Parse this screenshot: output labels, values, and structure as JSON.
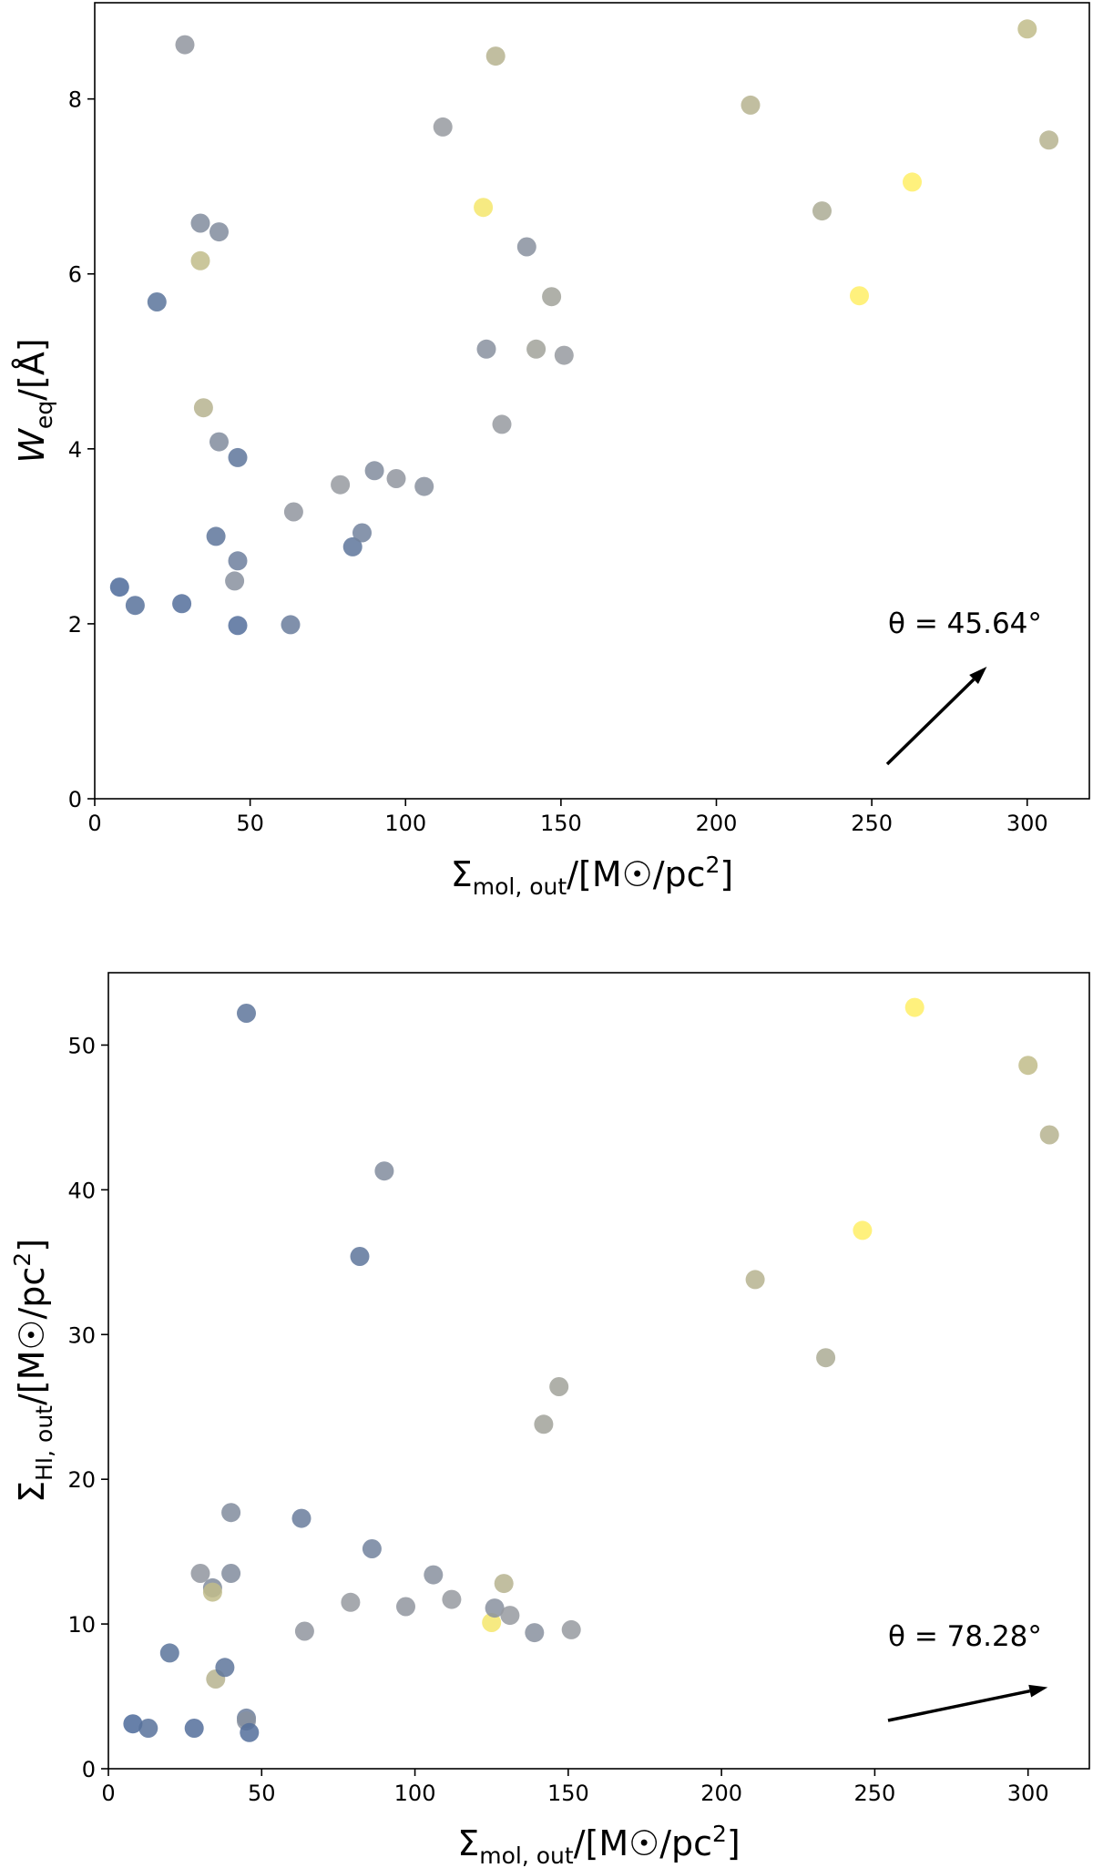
{
  "chart_data": [
    {
      "type": "scatter",
      "xlabel": {
        "main": "Σ",
        "sub": "mol, out",
        "post": "/[M",
        "sun": "☉",
        "unit": "/pc",
        "sup": "2",
        "close": "]"
      },
      "ylabel": {
        "main": "W",
        "sub": "eq",
        "post": "/[Å]"
      },
      "xlim": [
        0,
        320
      ],
      "ylim": [
        0,
        9.1
      ],
      "xticks": [
        0,
        50,
        100,
        150,
        200,
        250,
        300
      ],
      "yticks": [
        0,
        2,
        4,
        6,
        8
      ],
      "annotation": {
        "text": "θ = 45.64°",
        "angle_deg": 45.64
      },
      "colormap": [
        "#4c6a9a",
        "#979aa0",
        "#ffee66"
      ],
      "color_encoding": "marker colour indicates a third quantity (cividis-like colormap, no colorbar shown)",
      "points": [
        {
          "x": 8,
          "y": 2.42,
          "c": 0.0
        },
        {
          "x": 13,
          "y": 2.21,
          "c": 0.08
        },
        {
          "x": 28,
          "y": 2.23,
          "c": 0.05
        },
        {
          "x": 20,
          "y": 5.68,
          "c": 0.1
        },
        {
          "x": 29,
          "y": 8.62,
          "c": 0.45
        },
        {
          "x": 34,
          "y": 6.58,
          "c": 0.35
        },
        {
          "x": 34,
          "y": 6.15,
          "c": 0.7
        },
        {
          "x": 40,
          "y": 6.48,
          "c": 0.35
        },
        {
          "x": 35,
          "y": 4.47,
          "c": 0.65
        },
        {
          "x": 40,
          "y": 4.08,
          "c": 0.35
        },
        {
          "x": 39,
          "y": 3.0,
          "c": 0.12
        },
        {
          "x": 46,
          "y": 3.9,
          "c": 0.12
        },
        {
          "x": 46,
          "y": 2.72,
          "c": 0.22
        },
        {
          "x": 45,
          "y": 2.49,
          "c": 0.4
        },
        {
          "x": 46,
          "y": 1.98,
          "c": 0.05
        },
        {
          "x": 63,
          "y": 1.99,
          "c": 0.2
        },
        {
          "x": 64,
          "y": 3.28,
          "c": 0.45
        },
        {
          "x": 79,
          "y": 3.59,
          "c": 0.5
        },
        {
          "x": 83,
          "y": 2.88,
          "c": 0.12
        },
        {
          "x": 86,
          "y": 3.04,
          "c": 0.25
        },
        {
          "x": 90,
          "y": 3.75,
          "c": 0.35
        },
        {
          "x": 97,
          "y": 3.66,
          "c": 0.45
        },
        {
          "x": 106,
          "y": 3.57,
          "c": 0.4
        },
        {
          "x": 112,
          "y": 7.68,
          "c": 0.5
        },
        {
          "x": 125,
          "y": 6.76,
          "c": 0.95
        },
        {
          "x": 126,
          "y": 5.14,
          "c": 0.4
        },
        {
          "x": 129,
          "y": 8.49,
          "c": 0.65
        },
        {
          "x": 131,
          "y": 4.28,
          "c": 0.5
        },
        {
          "x": 139,
          "y": 6.31,
          "c": 0.4
        },
        {
          "x": 142,
          "y": 5.14,
          "c": 0.55
        },
        {
          "x": 147,
          "y": 5.74,
          "c": 0.55
        },
        {
          "x": 151,
          "y": 5.07,
          "c": 0.5
        },
        {
          "x": 211,
          "y": 7.93,
          "c": 0.65
        },
        {
          "x": 234,
          "y": 6.72,
          "c": 0.6
        },
        {
          "x": 246,
          "y": 5.75,
          "c": 1.0
        },
        {
          "x": 263,
          "y": 7.05,
          "c": 1.0
        },
        {
          "x": 300,
          "y": 8.8,
          "c": 0.7
        },
        {
          "x": 307,
          "y": 7.53,
          "c": 0.65
        }
      ]
    },
    {
      "type": "scatter",
      "xlabel": {
        "main": "Σ",
        "sub": "mol, out",
        "post": "/[M",
        "sun": "☉",
        "unit": "/pc",
        "sup": "2",
        "close": "]"
      },
      "ylabel": {
        "main": "Σ",
        "sub": "HI, out",
        "post": "/[M",
        "sun": "☉",
        "unit": "/pc",
        "sup": "2",
        "close": "]"
      },
      "xlim": [
        0,
        320
      ],
      "ylim": [
        0,
        55
      ],
      "xticks": [
        0,
        50,
        100,
        150,
        200,
        250,
        300
      ],
      "yticks": [
        0,
        10,
        20,
        30,
        40,
        50
      ],
      "annotation": {
        "text": "θ = 78.28°",
        "angle_deg": 78.28
      },
      "colormap": [
        "#4c6a9a",
        "#979aa0",
        "#ffee66"
      ],
      "color_encoding": "marker colour indicates a third quantity (cividis-like colormap, no colorbar shown)",
      "points": [
        {
          "x": 8,
          "y": 3.1,
          "c": 0.0
        },
        {
          "x": 13,
          "y": 2.8,
          "c": 0.08
        },
        {
          "x": 28,
          "y": 2.8,
          "c": 0.05
        },
        {
          "x": 20,
          "y": 8.0,
          "c": 0.1
        },
        {
          "x": 30,
          "y": 13.5,
          "c": 0.45
        },
        {
          "x": 34,
          "y": 12.5,
          "c": 0.35
        },
        {
          "x": 34,
          "y": 12.2,
          "c": 0.7
        },
        {
          "x": 40,
          "y": 13.5,
          "c": 0.35
        },
        {
          "x": 35,
          "y": 6.2,
          "c": 0.65
        },
        {
          "x": 40,
          "y": 17.7,
          "c": 0.35
        },
        {
          "x": 38,
          "y": 7.0,
          "c": 0.12
        },
        {
          "x": 45,
          "y": 52.2,
          "c": 0.12
        },
        {
          "x": 45,
          "y": 3.5,
          "c": 0.22
        },
        {
          "x": 45,
          "y": 3.3,
          "c": 0.4
        },
        {
          "x": 46,
          "y": 2.5,
          "c": 0.05
        },
        {
          "x": 63,
          "y": 17.3,
          "c": 0.2
        },
        {
          "x": 64,
          "y": 9.5,
          "c": 0.45
        },
        {
          "x": 79,
          "y": 11.5,
          "c": 0.5
        },
        {
          "x": 82,
          "y": 35.4,
          "c": 0.12
        },
        {
          "x": 86,
          "y": 15.2,
          "c": 0.25
        },
        {
          "x": 90,
          "y": 41.3,
          "c": 0.35
        },
        {
          "x": 97,
          "y": 11.2,
          "c": 0.45
        },
        {
          "x": 106,
          "y": 13.4,
          "c": 0.4
        },
        {
          "x": 112,
          "y": 11.7,
          "c": 0.5
        },
        {
          "x": 125,
          "y": 10.1,
          "c": 0.95
        },
        {
          "x": 126,
          "y": 11.1,
          "c": 0.4
        },
        {
          "x": 129,
          "y": 12.8,
          "c": 0.65
        },
        {
          "x": 131,
          "y": 10.6,
          "c": 0.5
        },
        {
          "x": 139,
          "y": 9.4,
          "c": 0.4
        },
        {
          "x": 142,
          "y": 23.8,
          "c": 0.55
        },
        {
          "x": 147,
          "y": 26.4,
          "c": 0.55
        },
        {
          "x": 151,
          "y": 9.6,
          "c": 0.5
        },
        {
          "x": 211,
          "y": 33.8,
          "c": 0.65
        },
        {
          "x": 234,
          "y": 28.4,
          "c": 0.6
        },
        {
          "x": 246,
          "y": 37.2,
          "c": 1.0
        },
        {
          "x": 263,
          "y": 52.6,
          "c": 1.0
        },
        {
          "x": 300,
          "y": 48.6,
          "c": 0.7
        },
        {
          "x": 307,
          "y": 43.8,
          "c": 0.65
        }
      ]
    }
  ]
}
